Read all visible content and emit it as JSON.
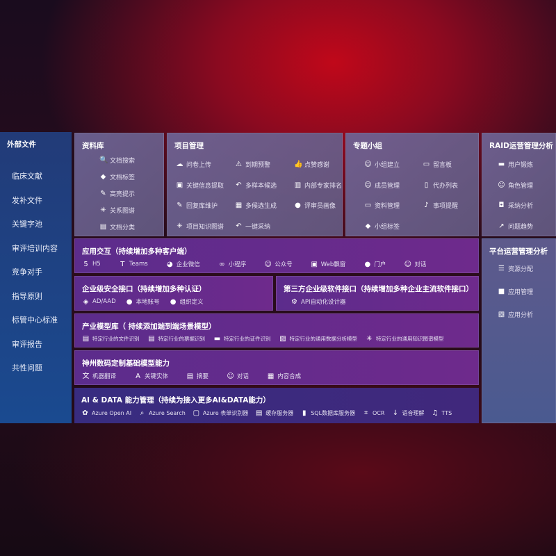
{
  "sidebar": {
    "title": "外部文件",
    "items": [
      "临床文献",
      "发补文件",
      "关键字池",
      "审评培训内容",
      "竞争对手",
      "指导原则",
      "标管中心标准",
      "审评报告",
      "共性问题"
    ]
  },
  "library": {
    "title": "资料库",
    "items": [
      {
        "label": "文档搜索",
        "icon": "doc-search-icon"
      },
      {
        "label": "文档标签",
        "icon": "tag-icon"
      },
      {
        "label": "高亮提示",
        "icon": "pen-icon"
      },
      {
        "label": "关系图谱",
        "icon": "graph-icon"
      },
      {
        "label": "文档分类",
        "icon": "doc-classify-icon"
      }
    ]
  },
  "project": {
    "title": "项目管理",
    "items": [
      {
        "label": "问卷上传",
        "icon": "cloud-upload-icon"
      },
      {
        "label": "到期预警",
        "icon": "alarm-icon"
      },
      {
        "label": "点赞感谢",
        "icon": "thumbs-up-icon"
      },
      {
        "label": "关键信息提取",
        "icon": "window-icon"
      },
      {
        "label": "多样本候选",
        "icon": "reply-icon"
      },
      {
        "label": "内部专家排名",
        "icon": "ranking-icon"
      },
      {
        "label": "回复库维护",
        "icon": "edit-icon"
      },
      {
        "label": "多候选生成",
        "icon": "puzzle-icon"
      },
      {
        "label": "评审员画像",
        "icon": "user-icon"
      },
      {
        "label": "项目知识图谱",
        "icon": "graph-icon"
      },
      {
        "label": "一键采纳",
        "icon": "reply-icon"
      }
    ]
  },
  "group": {
    "title": "专题小组",
    "items": [
      {
        "label": "小组建立",
        "icon": "group-icon"
      },
      {
        "label": "留言板",
        "icon": "bbs-icon"
      },
      {
        "label": "成员管理",
        "icon": "user-add-icon"
      },
      {
        "label": "代办列表",
        "icon": "clipboard-icon"
      },
      {
        "label": "资料管理",
        "icon": "folder-icon"
      },
      {
        "label": "事项提醒",
        "icon": "bell-icon"
      },
      {
        "label": "小组标签",
        "icon": "tag-icon"
      }
    ]
  },
  "raid": {
    "title": "RAID运营管理分析",
    "items": [
      {
        "label": "用户锻炼",
        "icon": "id-card-icon"
      },
      {
        "label": "角色管理",
        "icon": "users-icon"
      },
      {
        "label": "采纳分析",
        "icon": "qa-icon"
      },
      {
        "label": "问题趋势",
        "icon": "trend-icon"
      }
    ]
  },
  "platform": {
    "title": "平台运营管理分析",
    "items": [
      {
        "label": "资源分配",
        "icon": "list-icon"
      },
      {
        "label": "应用管理",
        "icon": "apps-icon"
      },
      {
        "label": "应用分析",
        "icon": "chart-icon"
      }
    ]
  },
  "app": {
    "title": "应用交互（持续增加多种客户端）",
    "items": [
      {
        "label": "H5",
        "icon": "html5-icon"
      },
      {
        "label": "Teams",
        "icon": "teams-icon"
      },
      {
        "label": "企业微信",
        "icon": "wecom-icon"
      },
      {
        "label": "小程序",
        "icon": "miniprogram-icon"
      },
      {
        "label": "公众号",
        "icon": "official-account-icon"
      },
      {
        "label": "Web飘窗",
        "icon": "window-icon"
      },
      {
        "label": "门户",
        "icon": "portal-icon"
      },
      {
        "label": "对话",
        "icon": "chat-icon"
      }
    ]
  },
  "security": {
    "title": "企业级安全接口（持续增加多种认证）",
    "items": [
      {
        "label": "AD/AAD",
        "icon": "ad-icon"
      },
      {
        "label": "本地账号",
        "icon": "account-icon"
      },
      {
        "label": "组织定义",
        "icon": "org-icon"
      }
    ]
  },
  "thirdparty": {
    "title": "第三方企业级软件接口（持续增加多种企业主流软件接口）",
    "items": [
      {
        "label": "API自动化设计器",
        "icon": "gear-icon"
      }
    ]
  },
  "industry": {
    "title": "产业模型库（ 持续添加端到端场景模型）",
    "items": [
      {
        "label": "特定行业的文件识别",
        "icon": "file-icon"
      },
      {
        "label": "特定行业的票据识别",
        "icon": "receipt-icon"
      },
      {
        "label": "特定行业的证件识别",
        "icon": "id-card-icon"
      },
      {
        "label": "特定行业的通用数据分析模型",
        "icon": "image-icon"
      },
      {
        "label": "特定行业的通用知识图谱模型",
        "icon": "graph-icon"
      }
    ]
  },
  "base": {
    "title": "神州数码定制基础模型能力",
    "items": [
      {
        "label": "机器翻译",
        "icon": "translate-icon"
      },
      {
        "label": "关键实体",
        "icon": "entity-icon"
      },
      {
        "label": "摘要",
        "icon": "doc-icon"
      },
      {
        "label": "对话",
        "icon": "chat-icon"
      },
      {
        "label": "内容合成",
        "icon": "puzzle-icon"
      }
    ]
  },
  "ai": {
    "title": "AI & DATA 能力管理（持续为接入更多AI&DATA能力）",
    "items": [
      {
        "label": "Azure Open AI",
        "icon": "openai-icon"
      },
      {
        "label": "Azure Search",
        "icon": "search-icon"
      },
      {
        "label": "Azure 表单识别器",
        "icon": "form-icon"
      },
      {
        "label": "缓存服务器",
        "icon": "cache-icon"
      },
      {
        "label": "SQL数据库服务器",
        "icon": "database-icon"
      },
      {
        "label": "OCR",
        "icon": "ocr-icon"
      },
      {
        "label": "语音理解",
        "icon": "speech-icon"
      },
      {
        "label": "TTS",
        "icon": "tts-icon"
      }
    ]
  }
}
